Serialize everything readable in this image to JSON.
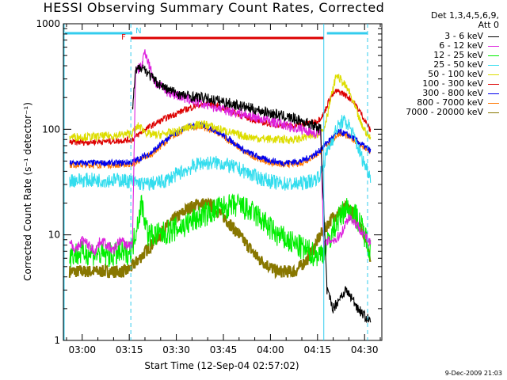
{
  "chart_data": {
    "type": "line",
    "title": "HESSI Observing Summary Count Rates, Corrected",
    "xlabel": "Start Time (12-Sep-04 02:57:02)",
    "ylabel": "Corrected Count Rate (s⁻¹ detector⁻¹)",
    "yscale": "log",
    "ylim": [
      1,
      1000
    ],
    "xlim_minutes": [
      57,
      1717
    ],
    "x_ticks": [
      "03:00",
      "03:15",
      "03:30",
      "03:45",
      "04:00",
      "04:15",
      "04:30"
    ],
    "x_tick_minutes": [
      180,
      195,
      210,
      225,
      240,
      255,
      270
    ],
    "y_ticks": [
      "1",
      "10",
      "100",
      "1000"
    ],
    "y_tick_values": [
      1,
      10,
      100,
      1000
    ],
    "legend_header": [
      "Det 1,3,4,5,6,9,",
      "Att 0"
    ],
    "footer": "9-Dec-2009 21:03",
    "flags": [
      {
        "label": "F",
        "color": "#dd0000",
        "start_min": 195.5,
        "end_min": 257.0
      },
      {
        "label": "N",
        "color": "#33ccee",
        "start_min": 196.5
      }
    ],
    "series": [
      {
        "name": "3 - 6 keV",
        "color": "#000000",
        "x": [
          196.0,
          197.0,
          199.0,
          203.0,
          207.0,
          212.0,
          218.0,
          224.0,
          230.0,
          236.0,
          242.0,
          248.0,
          253.0,
          256.0,
          258.0,
          260.0,
          262.0,
          264.0,
          266.0,
          268.0,
          270.0,
          272.0
        ],
        "y": [
          150,
          350,
          400,
          290,
          240,
          210,
          200,
          185,
          168,
          152,
          138,
          125,
          112,
          100,
          3,
          2,
          2.5,
          3,
          2.5,
          2,
          1.7,
          1.5
        ]
      },
      {
        "name": "6 - 12 keV",
        "color": "#dd22dd",
        "x": [
          176,
          178,
          180,
          182,
          184,
          186,
          188,
          190,
          192,
          194,
          196.0,
          197.0,
          199.0,
          200.0,
          203.0,
          207.0,
          212.0,
          218.0,
          224.0,
          230.0,
          236.0,
          242.0,
          248.0,
          253.0,
          256.0,
          257,
          259,
          261,
          263,
          265,
          267,
          269,
          271,
          272
        ],
        "y": [
          9,
          7,
          9,
          8,
          7,
          9,
          8,
          7,
          9,
          8,
          8,
          350,
          400,
          560,
          280,
          230,
          200,
          175,
          158,
          142,
          128,
          115,
          103,
          95,
          90,
          8,
          9,
          9,
          11,
          15,
          13,
          11,
          9,
          8
        ]
      },
      {
        "name": "12 - 25 keV",
        "color": "#00ee00",
        "x": [
          176,
          182,
          188,
          194,
          196,
          197.5,
          199,
          201,
          205,
          212,
          218,
          224,
          230,
          236,
          242,
          248,
          252,
          254,
          256,
          258,
          261,
          264,
          266,
          268,
          270,
          272
        ],
        "y": [
          6.5,
          6.8,
          6.4,
          6.7,
          7.5,
          13,
          20,
          10,
          10,
          12,
          15,
          18,
          19,
          15,
          10,
          8,
          7,
          6.5,
          6.5,
          8,
          13,
          18,
          17,
          14,
          10,
          7
        ]
      },
      {
        "name": "25 - 50 keV",
        "color": "#33ddee",
        "x": [
          176,
          184,
          192,
          196,
          200,
          206,
          212,
          218,
          224,
          230,
          236,
          242,
          248,
          254,
          256,
          258,
          261,
          263,
          265,
          267,
          269,
          272
        ],
        "y": [
          33,
          33,
          33,
          32,
          30,
          32,
          40,
          48,
          48,
          42,
          35,
          31,
          30,
          33,
          38,
          60,
          100,
          120,
          110,
          80,
          55,
          35
        ]
      },
      {
        "name": "50 - 100 keV",
        "color": "#dddd00",
        "x": [
          176,
          184,
          192,
          196,
          198,
          201,
          204,
          210,
          215,
          219,
          224,
          230,
          236,
          242,
          248,
          254,
          257,
          259,
          261,
          263,
          265,
          267,
          269,
          272
        ],
        "y": [
          85,
          85,
          88,
          92,
          108,
          90,
          88,
          95,
          108,
          112,
          100,
          88,
          82,
          80,
          80,
          88,
          100,
          180,
          330,
          280,
          230,
          160,
          110,
          80
        ]
      },
      {
        "name": "100 - 300 keV",
        "color": "#dd0000",
        "x": [
          176,
          184,
          192,
          196,
          200,
          206,
          212,
          217,
          221,
          226,
          232,
          238,
          244,
          250,
          255,
          257,
          259,
          261,
          263,
          266,
          269,
          272
        ],
        "y": [
          75,
          76,
          78,
          80,
          100,
          125,
          150,
          170,
          175,
          155,
          130,
          115,
          108,
          110,
          120,
          140,
          200,
          230,
          220,
          190,
          140,
          95
        ]
      },
      {
        "name": "300 - 800 keV",
        "color": "#0000ee",
        "x": [
          176,
          184,
          192,
          196,
          202,
          208,
          213,
          218,
          222,
          227,
          232,
          238,
          244,
          250,
          255,
          258,
          262,
          266,
          269,
          272
        ],
        "y": [
          48,
          48,
          48,
          49,
          60,
          85,
          105,
          110,
          100,
          80,
          62,
          52,
          48,
          50,
          60,
          75,
          95,
          85,
          72,
          62
        ]
      },
      {
        "name": "800 - 7000 keV",
        "color": "#ff7700",
        "x": [
          176,
          184,
          192,
          196,
          202,
          208,
          213,
          218,
          222,
          227,
          232,
          238,
          244,
          250,
          255,
          258,
          262,
          266,
          269,
          272
        ],
        "y": [
          46,
          46,
          46,
          47,
          58,
          82,
          102,
          106,
          96,
          78,
          60,
          50,
          46,
          48,
          58,
          72,
          92,
          82,
          70,
          60
        ]
      },
      {
        "name": "7000 - 20000 keV",
        "color": "#887700",
        "x": [
          176,
          182,
          188,
          194,
          196,
          202,
          208,
          214,
          218,
          221,
          225,
          230,
          236,
          242,
          248,
          252,
          256,
          260,
          264,
          266,
          268,
          270,
          272
        ],
        "y": [
          4.5,
          4.5,
          4.5,
          4.5,
          5,
          8,
          13,
          18,
          20,
          19,
          15,
          10,
          6,
          4.5,
          4.5,
          6,
          10,
          15,
          18,
          17,
          13,
          10,
          6
        ]
      }
    ]
  }
}
